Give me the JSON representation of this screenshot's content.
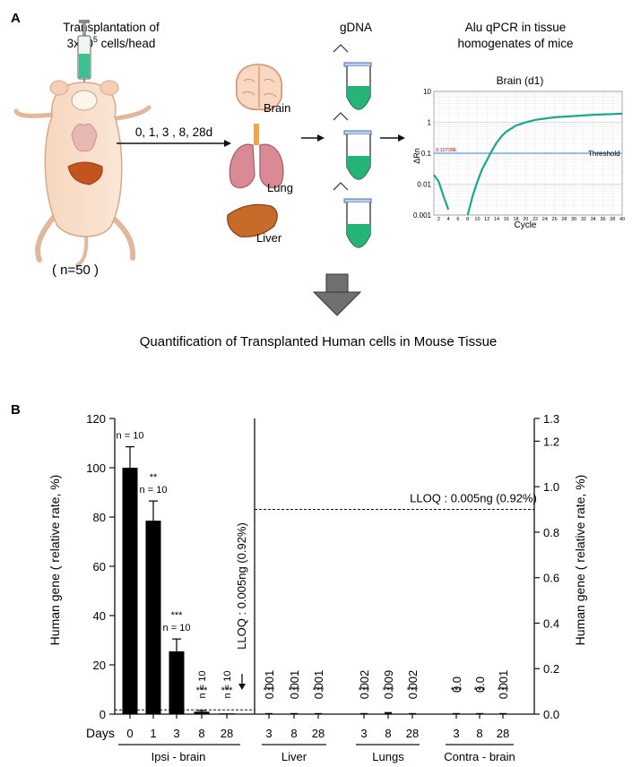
{
  "panel_a": {
    "label": "A",
    "transplant_line1": "Transplantation of",
    "transplant_line2_pre": "3x10",
    "transplant_line2_sup": "5",
    "transplant_line2_post": " cells/head",
    "timepoints": "0, 1, 3 , 8, 28d",
    "n_label": "( n=50 )",
    "organs": [
      "Brain",
      "Lung",
      "Liver"
    ],
    "gdna_title": "gDNA",
    "qpcr_title_line1": "Alu qPCR in tissue",
    "qpcr_title_line2": "homogenates of mice",
    "conclusion": "Quantification of Transplanted Human cells in Mouse Tissue"
  },
  "qpcr_plot": {
    "title": "Brain (d1)",
    "xlabel": "Cycle",
    "ylabel": "ΔRn",
    "y_ticks": [
      "10",
      "1",
      "0.1",
      "0.01",
      "0.001"
    ],
    "x_ticks": [
      "2",
      "4",
      "6",
      "8",
      "10",
      "12",
      "14",
      "16",
      "18",
      "20",
      "22",
      "24",
      "26",
      "28",
      "30",
      "32",
      "34",
      "36",
      "38",
      "40"
    ],
    "threshold_label": "Threshold",
    "threshold_value": "0.10738E",
    "threshold": 0.1,
    "curve": [
      [
        1,
        0.02
      ],
      [
        2,
        0.012
      ],
      [
        3,
        0.004
      ],
      [
        4,
        0.0015
      ],
      [
        8,
        0.001
      ],
      [
        9,
        0.004
      ],
      [
        10,
        0.012
      ],
      [
        11,
        0.03
      ],
      [
        12,
        0.06
      ],
      [
        13,
        0.12
      ],
      [
        14,
        0.22
      ],
      [
        15,
        0.35
      ],
      [
        16,
        0.5
      ],
      [
        18,
        0.78
      ],
      [
        20,
        1.0
      ],
      [
        22,
        1.2
      ],
      [
        26,
        1.45
      ],
      [
        30,
        1.6
      ],
      [
        34,
        1.75
      ],
      [
        38,
        1.85
      ],
      [
        40,
        1.9
      ]
    ],
    "colors": {
      "curve": "#1aa88a",
      "threshold": "#5b9bd5",
      "threshold_value": "#c00000"
    }
  },
  "chart_data": {
    "type": "bar",
    "panel_label": "B",
    "ylabel_left": "Human gene ( relative rate, %)",
    "ylabel_right": "Human gene ( relative rate, %)",
    "ylim_left": [
      0,
      120
    ],
    "yticks_left": [
      "0",
      "20",
      "40",
      "60",
      "80",
      "100",
      "120"
    ],
    "ylim_right": [
      0,
      1.3
    ],
    "yticks_right": [
      "0.0",
      "0.2",
      "0.4",
      "0.6",
      "0.8",
      "1.0",
      "1.2",
      "1.3"
    ],
    "x_axis_title": "Days",
    "lloq_left_label": "LLOQ : 0.005ng (0.92%)",
    "lloq_right_label": "LLOQ : 0.005ng (0.92%)",
    "lloq_value_percent": 0.92,
    "groups": [
      {
        "name": "Ipsi - brain",
        "axis": "left",
        "categories": [
          "0",
          "1",
          "3",
          "8",
          "28"
        ],
        "values": [
          100,
          78.5,
          25.5,
          1.0,
          0.3
        ],
        "errors": [
          8.5,
          8.0,
          5.0,
          0.5,
          0
        ],
        "sig": [
          "",
          "**",
          "***",
          "***",
          "***"
        ],
        "n_labels": [
          "n = 10",
          "n = 10",
          "n = 10",
          "n = 10",
          "n = 10"
        ]
      },
      {
        "name": "Liver",
        "axis": "right",
        "categories": [
          "3",
          "8",
          "28"
        ],
        "values": [
          0.001,
          0.001,
          0.001
        ],
        "value_labels": [
          "0.001",
          "0.001",
          "0.001"
        ],
        "sig": [
          "***",
          "***",
          "***"
        ]
      },
      {
        "name": "Lungs",
        "axis": "right",
        "categories": [
          "3",
          "8",
          "28"
        ],
        "values": [
          0.002,
          0.009,
          0.002
        ],
        "value_labels": [
          "0.002",
          "0.009",
          "0.002"
        ],
        "sig": [
          "***",
          "***",
          "***"
        ]
      },
      {
        "name": "Contra - brain",
        "axis": "right",
        "categories": [
          "3",
          "8",
          "28"
        ],
        "values": [
          0.0,
          0.0,
          0.001
        ],
        "value_labels": [
          "0.0",
          "0.0",
          "0.001"
        ],
        "sig": [
          "***",
          "***",
          "***"
        ]
      }
    ]
  }
}
